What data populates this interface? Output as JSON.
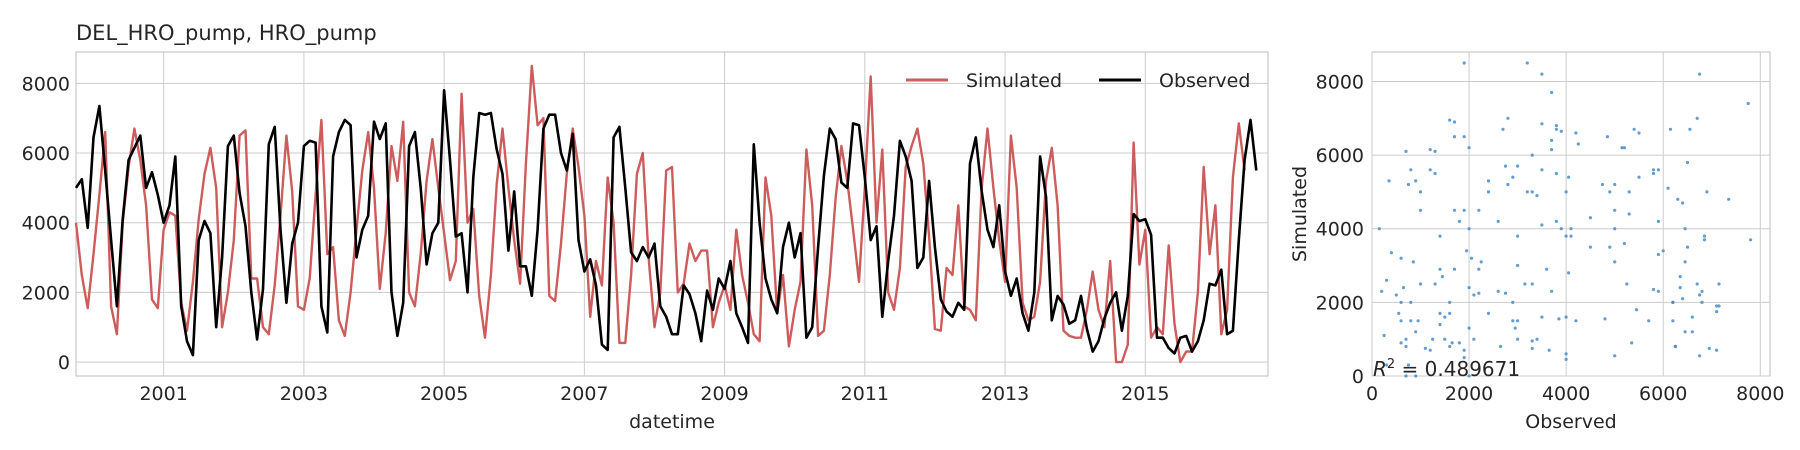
{
  "figure": {
    "title": "DEL_HRO_pump, HRO_pump"
  },
  "chart_data": [
    {
      "type": "line",
      "title": "DEL_HRO_pump, HRO_pump",
      "xlabel": "datetime",
      "ylabel": "",
      "xlim": [
        1999.75,
        2016.75
      ],
      "ylim": [
        -400,
        8900
      ],
      "x_ticks": [
        2001,
        2003,
        2005,
        2007,
        2009,
        2011,
        2013,
        2015
      ],
      "x_tick_labels": [
        "2001",
        "2003",
        "2005",
        "2007",
        "2009",
        "2011",
        "2013",
        "2015"
      ],
      "y_ticks": [
        0,
        2000,
        4000,
        6000,
        8000
      ],
      "y_tick_labels": [
        "0",
        "2000",
        "4000",
        "6000",
        "8000"
      ],
      "grid": true,
      "legend_position": "top-right",
      "x_start": 1999.75,
      "x_step": 0.083333,
      "series": [
        {
          "name": "Simulated",
          "color": "#cd5c5c",
          "values": [
            4000,
            2500,
            1550,
            3100,
            4800,
            6600,
            1600,
            800,
            4000,
            5600,
            6700,
            5800,
            4500,
            1800,
            1550,
            3800,
            4300,
            4200,
            1700,
            900,
            2300,
            4100,
            5400,
            6150,
            5000,
            1000,
            2000,
            3500,
            6500,
            6650,
            2400,
            2400,
            1000,
            800,
            2200,
            4200,
            6500,
            4900,
            1600,
            1500,
            2400,
            4800,
            6950,
            3100,
            3300,
            1200,
            750,
            2000,
            3800,
            5500,
            6600,
            5000,
            2100,
            3700,
            6200,
            5200,
            6900,
            2000,
            1600,
            3100,
            5200,
            6400,
            5000,
            3700,
            2350,
            2900,
            7700,
            4000,
            4400,
            1900,
            700,
            2500,
            5100,
            6700,
            5000,
            3500,
            2250,
            5700,
            8500,
            6800,
            7000,
            1900,
            1750,
            3400,
            5400,
            6700,
            5600,
            4200,
            1300,
            2900,
            2200,
            5300,
            4000,
            550,
            550,
            2500,
            5400,
            6000,
            3000,
            1000,
            2000,
            5500,
            5600,
            2000,
            2250,
            3400,
            2900,
            3200,
            3200,
            1000,
            1700,
            2200,
            1500,
            3800,
            2500,
            1700,
            800,
            600,
            5300,
            4200,
            1400,
            2500,
            450,
            1500,
            2300,
            6100,
            4500,
            750,
            900,
            2500,
            4700,
            6200,
            5200,
            3800,
            2300,
            5000,
            8200,
            4000,
            6100,
            2000,
            1500,
            2700,
            5600,
            6200,
            6700,
            5700,
            3600,
            950,
            900,
            2700,
            2500,
            4500,
            1600,
            1500,
            1200,
            5000,
            6700,
            5000,
            3500,
            2300,
            6500,
            5000,
            1700,
            1200,
            1300,
            2300,
            5200,
            6150,
            4500,
            900,
            750,
            700,
            700,
            1500,
            2600,
            1500,
            1000,
            2900,
            0,
            0,
            500,
            6300,
            2800,
            3800,
            700,
            1000,
            800,
            3350,
            1100,
            0,
            300,
            300,
            2000,
            5600,
            3100,
            4500,
            800,
            1500,
            5300,
            6850,
            5500
          ]
        },
        {
          "name": "Observed",
          "color": "#000000",
          "values": [
            5000,
            5250,
            3850,
            6450,
            7350,
            5500,
            3500,
            1600,
            4100,
            5800,
            6150,
            6500,
            5000,
            5450,
            4800,
            4000,
            4500,
            5900,
            1600,
            600,
            200,
            3500,
            4050,
            3700,
            1000,
            3000,
            6200,
            6500,
            4850,
            3900,
            2000,
            650,
            2100,
            6250,
            6750,
            3800,
            1700,
            3400,
            4000,
            6200,
            6350,
            6300,
            1600,
            850,
            5900,
            6600,
            6950,
            6800,
            3000,
            3800,
            4200,
            6900,
            6400,
            6850,
            2000,
            750,
            1700,
            6200,
            6600,
            5000,
            2800,
            3700,
            4000,
            7800,
            5800,
            3600,
            3700,
            2000,
            5300,
            7150,
            7100,
            7150,
            6100,
            5400,
            3200,
            4900,
            2750,
            2750,
            1900,
            3800,
            6700,
            7100,
            7100,
            6000,
            5500,
            6550,
            3500,
            2600,
            2950,
            2200,
            500,
            350,
            6450,
            6750,
            5000,
            3150,
            2900,
            3300,
            3000,
            3400,
            1600,
            1300,
            800,
            800,
            2200,
            1950,
            1400,
            600,
            2050,
            1500,
            2400,
            2100,
            2900,
            1400,
            1000,
            550,
            6250,
            4000,
            2400,
            1800,
            1400,
            3300,
            4000,
            3000,
            3700,
            700,
            1000,
            3300,
            5350,
            6700,
            6400,
            5150,
            5000,
            6850,
            6800,
            5300,
            3500,
            3900,
            1300,
            2900,
            4200,
            6350,
            5900,
            5200,
            2700,
            3000,
            5200,
            3300,
            1800,
            1450,
            1300,
            1700,
            1500,
            5700,
            6450,
            4900,
            3800,
            3300,
            4500,
            2600,
            1900,
            2400,
            1400,
            900,
            2000,
            5900,
            4750,
            1200,
            1900,
            1650,
            1100,
            1200,
            1900,
            950,
            300,
            600,
            1250,
            1700,
            2000,
            900,
            1900,
            4250,
            4050,
            4100,
            3650,
            700,
            700,
            400,
            250,
            700,
            750,
            300,
            600,
            1200,
            2250,
            2200,
            2650,
            800,
            900,
            3500,
            5800,
            6950,
            5500
          ]
        }
      ]
    },
    {
      "type": "scatter",
      "title": "",
      "xlabel": "Observed",
      "ylabel": "Simulated",
      "xlim": [
        0,
        8200
      ],
      "ylim": [
        0,
        8800
      ],
      "x_ticks": [
        0,
        2000,
        4000,
        6000,
        8000
      ],
      "x_tick_labels": [
        "0",
        "2000",
        "4000",
        "6000",
        "8000"
      ],
      "y_ticks": [
        0,
        2000,
        4000,
        6000,
        8000
      ],
      "y_tick_labels": [
        "0",
        "2000",
        "4000",
        "6000",
        "8000"
      ],
      "grid": true,
      "annotation": "R² = 0.489671",
      "annotation_parts": {
        "prefix": "R",
        "superscript": "2",
        "suffix": " = 0.489671"
      },
      "point_color": "#4a8cc8",
      "points_x_series": "Observed",
      "points_y_series": "Simulated",
      "extra_points": [
        [
          3200,
          8500
        ],
        [
          6750,
          8200
        ],
        [
          7750,
          7400
        ],
        [
          2800,
          7000
        ],
        [
          150,
          4000
        ]
      ]
    }
  ]
}
